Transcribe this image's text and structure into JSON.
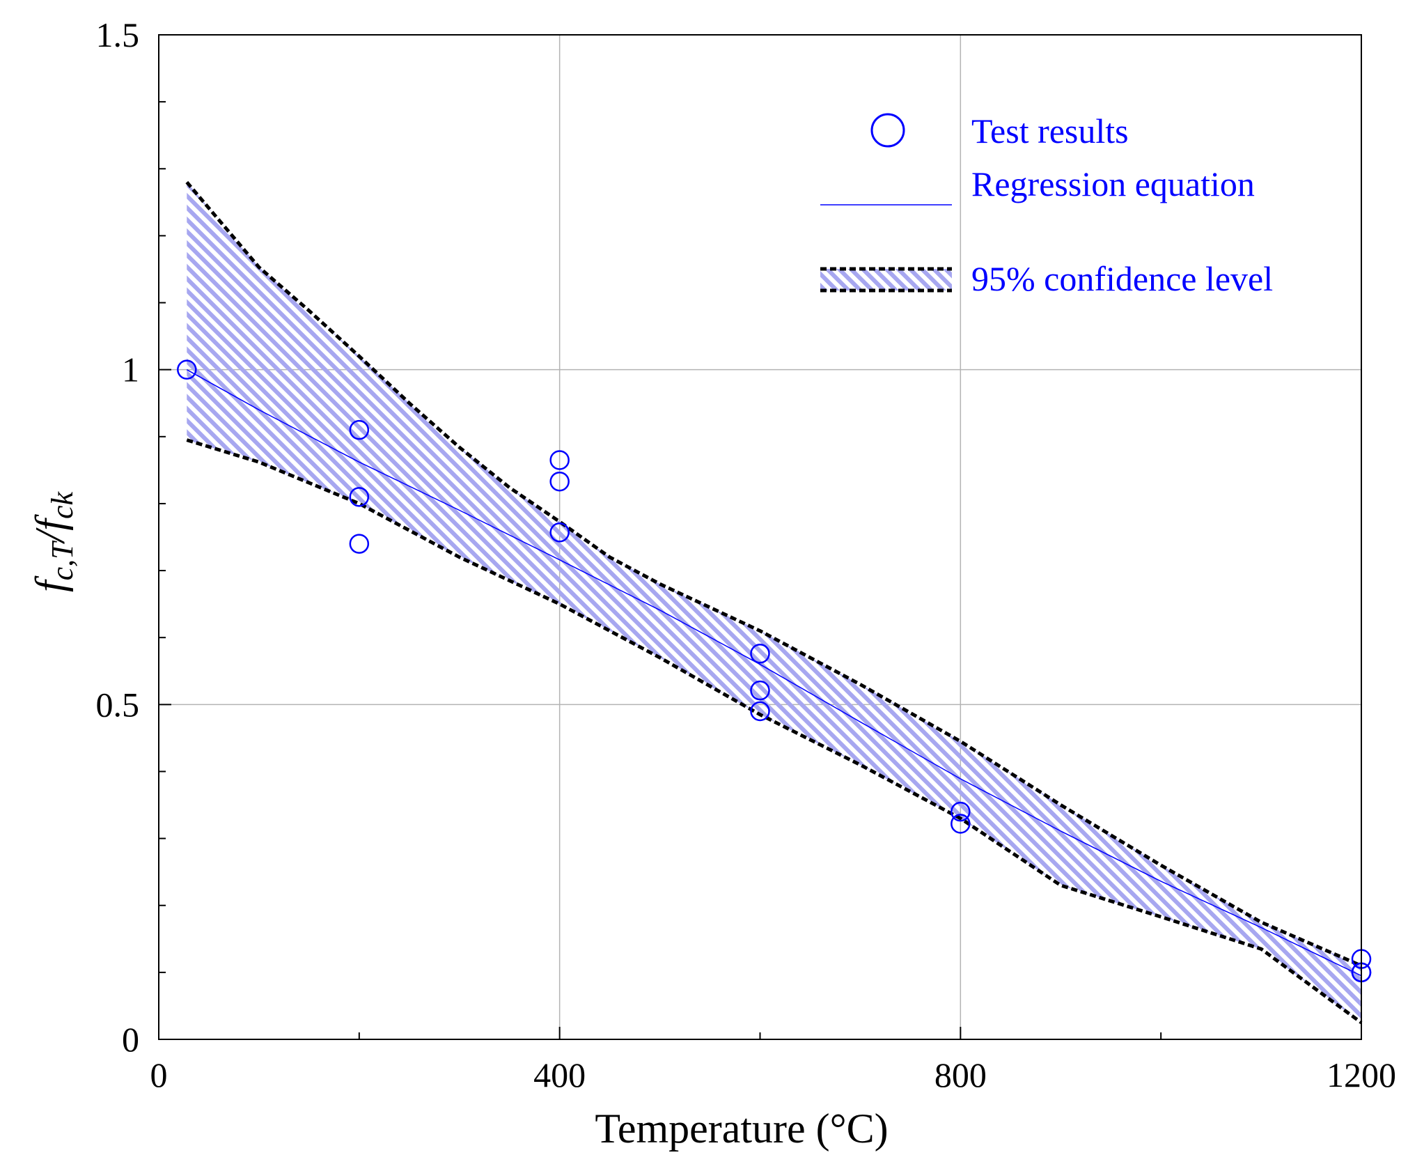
{
  "chart_data": {
    "type": "scatter",
    "title": "",
    "xlabel": "Temperature (°C)",
    "ylabel": "f_c,T/f_ck",
    "ylabel_parts": {
      "f1": "f",
      "sub1": "c",
      "comma": ",",
      "T": "T",
      "slash": "/",
      "f2": "f",
      "sub2": "ck"
    },
    "xlim": [
      0,
      1200
    ],
    "ylim": [
      0,
      1.5
    ],
    "x_major_ticks": [
      0,
      400,
      800,
      1200
    ],
    "x_major_tick_labels": [
      "0",
      "400",
      "800",
      "1200"
    ],
    "x_minor_ticks": [
      200,
      600,
      1000
    ],
    "y_major_ticks": [
      0,
      0.5,
      1,
      1.5
    ],
    "y_major_tick_labels": [
      "0",
      "0.5",
      "1",
      "1.5"
    ],
    "y_minor_ticks": [
      0.1,
      0.2,
      0.3,
      0.4,
      0.6,
      0.7,
      0.8,
      0.9,
      1.1,
      1.2,
      1.3,
      1.4
    ],
    "grid": true,
    "legend_position": "top-right",
    "legend": {
      "test_results": "Test results",
      "regression": "Regression equation",
      "confidence": "95% confidence level"
    },
    "colors": {
      "points": "#0000ff",
      "regression": "#0000ff",
      "bounds": "#000000",
      "band": "#9999ee",
      "grid": "#b3b3b3",
      "axis": "#000000"
    },
    "series": [
      {
        "name": "Test results",
        "type": "scatter",
        "x": [
          28,
          200,
          200,
          200,
          400,
          400,
          400,
          600,
          600,
          600,
          800,
          800,
          1200,
          1200,
          1200
        ],
        "y": [
          1.0,
          0.91,
          0.81,
          0.74,
          0.865,
          0.833,
          0.757,
          0.576,
          0.521,
          0.49,
          0.34,
          0.322,
          0.12,
          0.1,
          0.1
        ]
      },
      {
        "name": "Regression equation",
        "type": "line",
        "x": [
          28,
          100,
          200,
          300,
          400,
          500,
          600,
          700,
          800,
          900,
          1000,
          1100,
          1200
        ],
        "y": [
          1.0,
          0.94,
          0.862,
          0.79,
          0.716,
          0.641,
          0.56,
          0.474,
          0.389,
          0.311,
          0.236,
          0.167,
          0.095
        ]
      },
      {
        "name": "95% confidence level (upper)",
        "type": "line",
        "x": [
          28,
          100,
          150,
          200,
          250,
          300,
          350,
          400,
          450,
          500,
          600,
          700,
          800,
          900,
          1000,
          1100,
          1200
        ],
        "y": [
          1.28,
          1.153,
          1.088,
          1.02,
          0.95,
          0.884,
          0.824,
          0.773,
          0.72,
          0.68,
          0.61,
          0.53,
          0.445,
          0.35,
          0.26,
          0.175,
          0.11
        ]
      },
      {
        "name": "95% confidence level (lower)",
        "type": "line",
        "x": [
          28,
          100,
          200,
          300,
          400,
          500,
          600,
          700,
          800,
          900,
          1000,
          1100,
          1150,
          1200
        ],
        "y": [
          0.895,
          0.862,
          0.8,
          0.72,
          0.65,
          0.57,
          0.485,
          0.41,
          0.33,
          0.23,
          0.183,
          0.135,
          0.08,
          0.025
        ]
      }
    ]
  }
}
